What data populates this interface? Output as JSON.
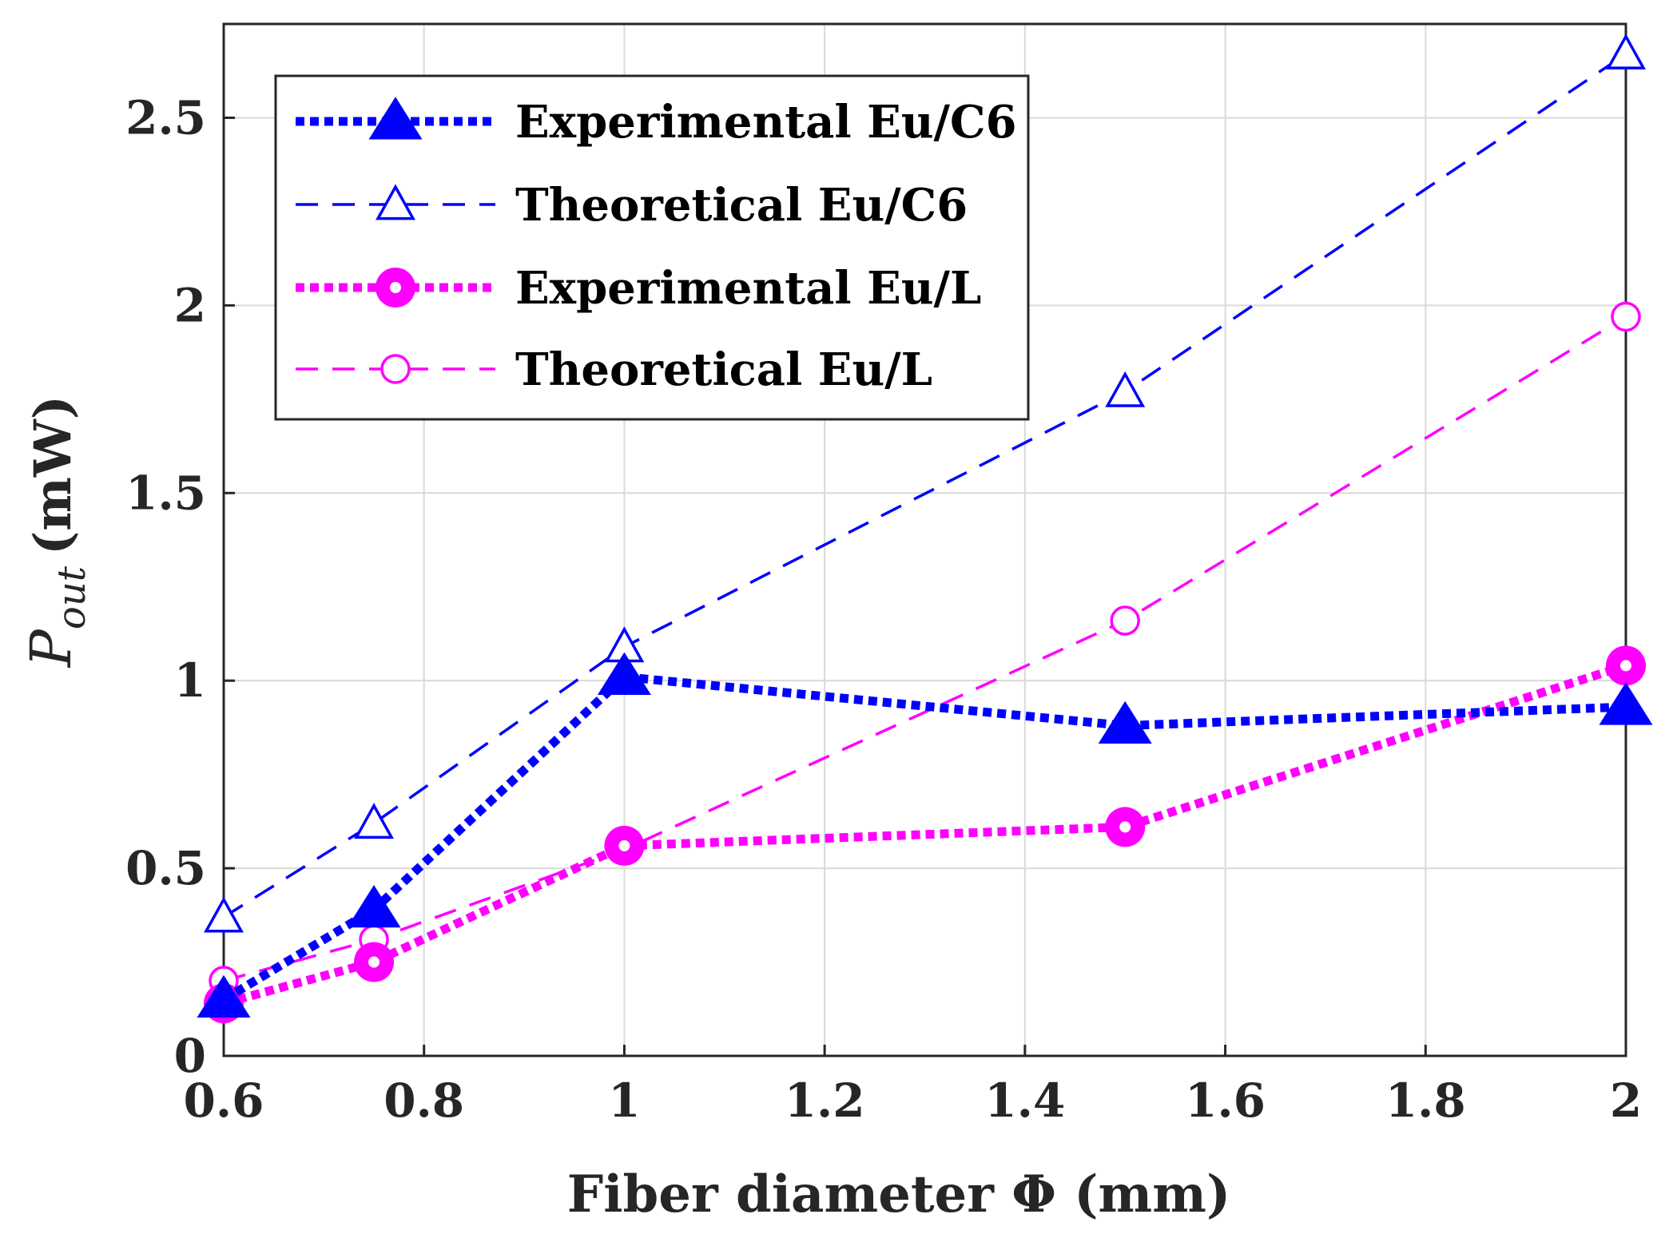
{
  "chart_data": {
    "type": "line",
    "xlabel": "Fiber diameter Φ (mm)",
    "ylabel_main": "P",
    "ylabel_sub": "out",
    "ylabel_unit": "(mW)",
    "xlim": [
      0.6,
      2.0
    ],
    "ylim": [
      0,
      2.75
    ],
    "xticks": [
      0.6,
      0.8,
      1.0,
      1.2,
      1.4,
      1.6,
      1.8,
      2.0
    ],
    "xtick_labels": [
      "0.6",
      "0.8",
      "1",
      "1.2",
      "1.4",
      "1.6",
      "1.8",
      "2"
    ],
    "yticks": [
      0,
      0.5,
      1.0,
      1.5,
      2.0,
      2.5
    ],
    "ytick_labels": [
      "0",
      "0.5",
      "1",
      "1.5",
      "2",
      "2.5"
    ],
    "grid": true,
    "legend_position": "top-left",
    "x": [
      0.6,
      0.75,
      1.0,
      1.5,
      2.0
    ],
    "series": [
      {
        "name": "Experimental Eu/C6",
        "color": "#0000ff",
        "marker": "triangle-filled",
        "line": "dotted-thick",
        "values": [
          0.15,
          0.39,
          1.01,
          0.88,
          0.93
        ]
      },
      {
        "name": "Theoretical Eu/C6",
        "color": "#0000ff",
        "marker": "triangle-open",
        "line": "dashed",
        "values": [
          0.37,
          0.62,
          1.09,
          1.77,
          2.67
        ]
      },
      {
        "name": "Experimental Eu/L",
        "color": "#ff00ff",
        "marker": "circle-filled",
        "line": "dotted-thick",
        "values": [
          0.14,
          0.25,
          0.56,
          0.61,
          1.04
        ]
      },
      {
        "name": "Theoretical Eu/L",
        "color": "#ff00ff",
        "marker": "circle-open",
        "line": "dashed",
        "values": [
          0.2,
          0.31,
          0.55,
          1.16,
          1.97
        ]
      }
    ]
  }
}
